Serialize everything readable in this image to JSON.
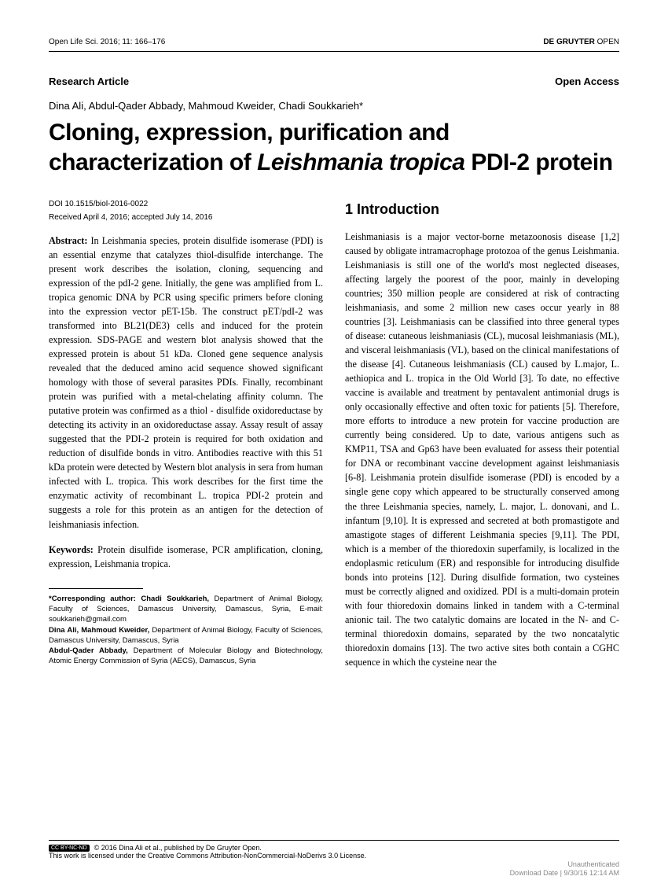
{
  "header": {
    "journal_ref": "Open Life Sci. 2016; 11: 166–176",
    "publisher_prefix": "DE GRUYTER",
    "publisher_suffix": " OPEN"
  },
  "meta": {
    "article_type": "Research Article",
    "access": "Open Access"
  },
  "authors": "Dina Ali, Abdul-Qader Abbady, Mahmoud Kweider, Chadi Soukkarieh*",
  "title_pre": "Cloning, expression, purification and characterization of ",
  "title_italic": "Leishmania tropica",
  "title_post": " PDI-2 protein",
  "left": {
    "doi": "DOI 10.1515/biol-2016-0022",
    "dates": "Received April 4, 2016; accepted July 14, 2016",
    "abstract_label": "Abstract:",
    "abstract_body": " In Leishmania species, protein disulfide isomerase (PDI) is an essential enzyme that catalyzes thiol-disulfide interchange. The present work describes the isolation, cloning, sequencing and expression of the pdI-2 gene. Initially, the gene was amplified from L. tropica genomic DNA by PCR using specific primers before cloning into the expression vector pET-15b. The construct pET/pdI-2 was transformed into BL21(DE3) cells and induced for the protein expression. SDS-PAGE and western blot analysis showed that the expressed protein is about 51 kDa. Cloned gene sequence analysis revealed that the deduced amino acid sequence showed significant homology with those of several parasites PDIs. Finally, recombinant protein was purified with a metal-chelating affinity column. The putative protein was confirmed as a thiol - disulfide oxidoreductase by detecting its activity in an oxidoreductase assay. Assay result of assay suggested that the PDI-2 protein is required for both oxidation and reduction of disulfide bonds in vitro. Antibodies reactive with this 51 kDa protein were detected by Western blot analysis in sera from human infected with L. tropica. This work describes for the first time the enzymatic activity of recombinant L. tropica PDI-2 protein and suggests a role for this protein as an antigen for the detection of leishmaniasis infection.",
    "keywords_label": "Keywords:",
    "keywords_body": " Protein disulfide isomerase, PCR amplification, cloning, expression, Leishmania tropica.",
    "corr1_label": "*Corresponding author: Chadi Soukkarieh,",
    "corr1_body": " Department of Animal Biology, Faculty of Sciences, Damascus University, Damascus, Syria, E-mail: soukkarieh@gmail.com",
    "corr2_label": "Dina Ali, Mahmoud Kweider,",
    "corr2_body": " Department of Animal Biology, Faculty of Sciences, Damascus University, Damascus, Syria",
    "corr3_label": "Abdul-Qader Abbady,",
    "corr3_body": " Department of Molecular Biology and Biotechnology, Atomic Energy Commission of Syria (AECS), Damascus, Syria"
  },
  "right": {
    "section_heading": "1  Introduction",
    "intro_body": "Leishmaniasis is a major vector-borne metazoonosis disease [1,2] caused by obligate intramacrophage protozoa of the genus Leishmania. Leishmaniasis is still one of the world's most neglected diseases, affecting largely the poorest of the poor, mainly in developing countries; 350 million people are considered at risk of contracting leishmaniasis, and some 2 million new cases occur yearly in 88 countries [3]. Leishmaniasis can be classified into three general types of disease: cutaneous leishmaniasis (CL), mucosal leishmaniasis (ML), and visceral leishmaniasis (VL), based on the clinical manifestations of the disease [4]. Cutaneous leishmaniasis (CL) caused by L.major, L. aethiopica and L. tropica in the Old World [3]. To date, no effective vaccine is available and treatment by pentavalent antimonial drugs is only occasionally effective and often toxic for patients [5]. Therefore, more efforts to introduce a new protein for vaccine production are currently being considered. Up to date, various antigens such as KMP11, TSA and Gp63 have been evaluated for assess their potential for DNA or recombinant vaccine development against leishmaniasis [6-8]. Leishmania protein disulfide isomerase (PDI) is encoded by a single gene copy which appeared to be structurally conserved among the three Leishmania species, namely, L. major, L. donovani, and L. infantum [9,10]. It is expressed and secreted at both promastigote and amastigote stages of different Leishmania species [9,11]. The PDI, which is a member of the thioredoxin superfamily, is localized in the endoplasmic reticulum (ER) and responsible for introducing disulfide bonds into proteins [12]. During disulfide formation, two cysteines must be correctly aligned and oxidized. PDI is a multi-domain protein with four thioredoxin domains linked in tandem with a C-terminal anionic tail. The two catalytic domains are located in the N- and C-terminal thioredoxin domains, separated by the two noncatalytic thioredoxin domains [13]. The two active sites both contain a CGHC sequence in which the cysteine near the"
  },
  "footer": {
    "cc_badge": "CC BY-NC-ND",
    "copyright": "© 2016 Dina Ali et al., published by De Gruyter Open.",
    "license": "This work is licensed under the Creative Commons Attribution-NonCommercial-NoDerivs 3.0 License."
  },
  "watermark": {
    "line1": "Unauthenticated",
    "line2": "Download Date | 9/30/16 12:14 AM"
  }
}
